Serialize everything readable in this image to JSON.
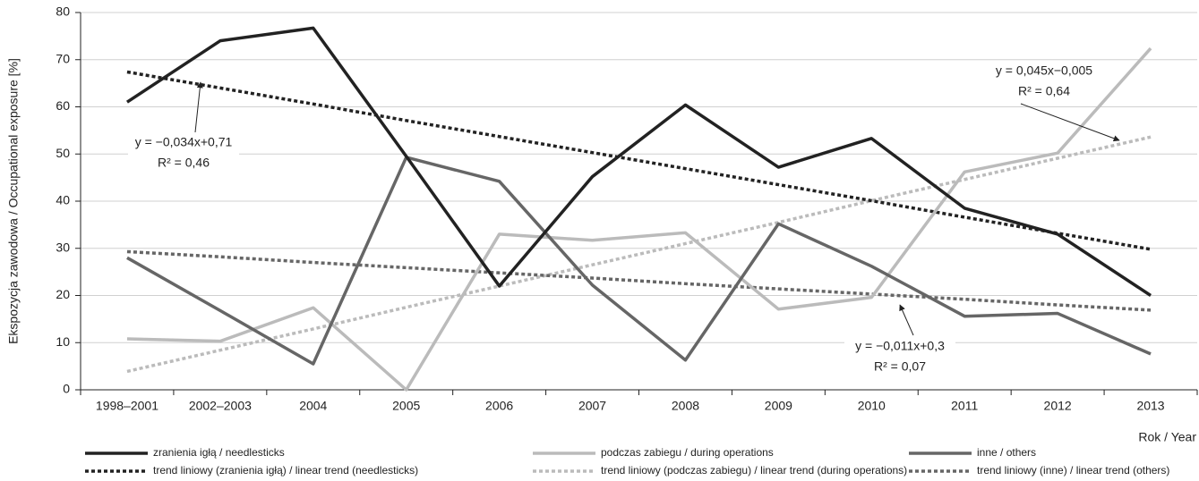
{
  "chart_data": {
    "type": "line",
    "y_label": "Ekspozycja zawodowa / Occupational exposure [%]",
    "x_label": "Rok / Year",
    "categories": [
      "1998–2001",
      "2002–2003",
      "2004",
      "2005",
      "2006",
      "2007",
      "2008",
      "2009",
      "2010",
      "2011",
      "2012",
      "2013"
    ],
    "series": [
      {
        "name": "zranienia igłą / needlesticks",
        "color": "#222222",
        "dashed": false,
        "values": [
          61,
          74,
          76.7,
          49.5,
          22,
          45.2,
          60.4,
          47.2,
          53.3,
          38.5,
          33,
          20
        ]
      },
      {
        "name": "podczas zabiegu / during operations",
        "color": "#bbbbbb",
        "dashed": false,
        "values": [
          10.8,
          10.3,
          17.4,
          0,
          33,
          31.7,
          33.3,
          17.1,
          19.6,
          46.2,
          50.2,
          72.4
        ]
      },
      {
        "name": "inne / others",
        "color": "#666666",
        "dashed": false,
        "values": [
          28,
          16.8,
          5.5,
          49.3,
          44.2,
          22.2,
          6.3,
          35.2,
          26.2,
          15.6,
          16.2,
          7.6
        ]
      },
      {
        "name": "trend liniowy (zranienia igłą) / linear trend (needlesticks)",
        "color": "#222222",
        "dashed": true,
        "values": [
          67.4,
          64.0,
          60.6,
          57.1,
          53.7,
          50.3,
          46.9,
          43.5,
          40.1,
          36.6,
          33.2,
          29.8
        ]
      },
      {
        "name": "trend liniowy (podczas zabiegu) / linear trend (during operations)",
        "color": "#bbbbbb",
        "dashed": true,
        "values": [
          3.9,
          8.4,
          12.9,
          17.5,
          22.0,
          26.5,
          31.0,
          35.5,
          40.1,
          44.6,
          49.1,
          53.6
        ]
      },
      {
        "name": "trend liniowy (inne) / linear trend (others)",
        "color": "#666666",
        "dashed": true,
        "values": [
          29.3,
          28.2,
          27.0,
          25.9,
          24.8,
          23.7,
          22.5,
          21.4,
          20.3,
          19.2,
          18.0,
          16.9
        ]
      }
    ],
    "annotations": [
      {
        "equation": "y = −0,034x+0,71",
        "r2": "R² = 0,46"
      },
      {
        "equation": "y = 0,045x−0,005",
        "r2": "R² = 0,64"
      },
      {
        "equation": "y = −0,011x+0,3",
        "r2": "R² = 0,07"
      }
    ],
    "ylim": [
      0,
      80
    ],
    "yticks": [
      0,
      10,
      20,
      30,
      40,
      50,
      60,
      70,
      80
    ],
    "grid": true
  }
}
